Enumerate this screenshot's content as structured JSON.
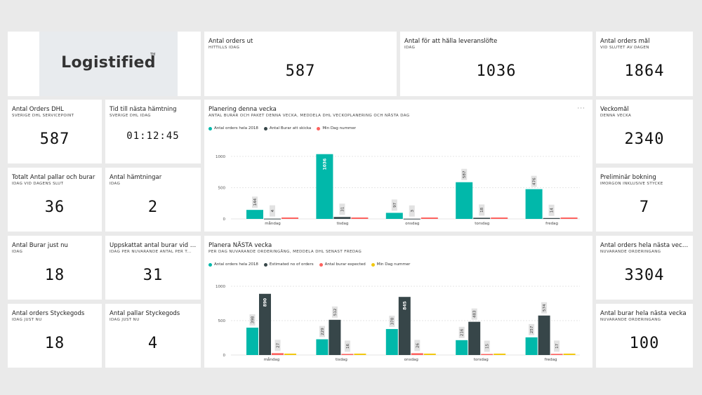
{
  "logo": {
    "text": "Logistified",
    "tm": "TM"
  },
  "kpis": {
    "orders_ut": {
      "title": "Antal orders ut",
      "sub": "HITTILLS IDAG",
      "value": "587"
    },
    "leveranslofte": {
      "title": "Antal för att hålla leveranslöfte",
      "sub": "IDAG",
      "value": "1036"
    },
    "orders_mal": {
      "title": "Antal orders mål",
      "sub": "VID SLUTET AV DAGEN",
      "value": "1864"
    },
    "orders_dhl": {
      "title": "Antal Orders DHL",
      "sub": "SVERIGE DHL SERVICEPOINT",
      "value": "587"
    },
    "tid_hamtning": {
      "title": "Tid till nästa hämtning",
      "sub": "SVERIGE DHL IDAG",
      "value": "01:12:45"
    },
    "veckomal": {
      "title": "Veckomål",
      "sub": "DENNA VECKA",
      "value": "2340"
    },
    "pallar_burar": {
      "title": "Totalt Antal pallar och burar",
      "sub": "IDAG VID DAGENS SLUT",
      "value": "36"
    },
    "hamtningar": {
      "title": "Antal hämtningar",
      "sub": "IDAG",
      "value": "2"
    },
    "prel_bokning": {
      "title": "Preliminär bokning",
      "sub": "IMORGON INKLUSIVE STYCKE",
      "value": "7"
    },
    "burar_nu": {
      "title": "Antal Burar just nu",
      "sub": "IDAG",
      "value": "18"
    },
    "uppskattat": {
      "title": "Uppskattat antal burar vid d...",
      "sub": "IDAG PER NUVARANDE ANTAL PER T...",
      "value": "31"
    },
    "orders_nasta": {
      "title": "Antal orders hela nästa vecka",
      "sub": "NUVARANDE ORDERINGÅNG",
      "value": "3304"
    },
    "styckegods": {
      "title": "Antal orders Styckegods",
      "sub": "IDAG JUST NU",
      "value": "18"
    },
    "pallar_stycke": {
      "title": "Antal pallar Styckegods",
      "sub": "IDAG JUST NU",
      "value": "4"
    },
    "burar_nasta": {
      "title": "Antal burar hela nästa vecka",
      "sub": "NUVARANDE ORDERINGÅNG",
      "value": "100"
    }
  },
  "chart1": {
    "title": "Planering denna vecka",
    "sub": "ANTAL BURAR OCH PAKET DENNA VECKA, MEDDELA DHL VECKOPLANERING OCH NÄSTA DAG",
    "more": "···",
    "legend": [
      "Antal orders hela 2018",
      "Antal Burar att skicka",
      "Min Dag nummer"
    ]
  },
  "chart2": {
    "title": "Planera NÄSTA vecka",
    "sub": "PER DAG NUVARANDE ORDERINGÅNG, MEDDELA DHL SENAST FREDAG",
    "legend": [
      "Antal orders hela 2018",
      "Estimated no of orders",
      "Antal burar expected",
      "Min Dag nummer"
    ]
  },
  "colors": {
    "teal": "#01b8aa",
    "dark": "#374649",
    "red": "#fd625e",
    "yellow": "#f2c80f"
  },
  "chart_data": [
    {
      "type": "bar",
      "categories": [
        "måndag",
        "tisdag",
        "onsdag",
        "torsdag",
        "fredag"
      ],
      "series": [
        {
          "name": "Antal orders hela 2018",
          "values": [
            144,
            1036,
            97,
            587,
            476
          ]
        },
        {
          "name": "Antal Burar att skicka",
          "values": [
            4,
            31,
            3,
            18,
            14
          ]
        },
        {
          "name": "Min Dag nummer",
          "values": [
            6,
            6,
            6,
            6,
            6
          ]
        }
      ],
      "yticks": [
        "0",
        "500",
        "1000"
      ],
      "ylim": [
        0,
        1100
      ]
    },
    {
      "type": "bar",
      "categories": [
        "måndag",
        "tisdag",
        "onsdag",
        "torsdag",
        "fredag"
      ],
      "series": [
        {
          "name": "Antal orders hela 2018",
          "values": [
            398,
            229,
            378,
            216,
            257
          ]
        },
        {
          "name": "Estimated no of orders",
          "values": [
            890,
            512,
            845,
            483,
            574
          ]
        },
        {
          "name": "Antal burar expected",
          "values": [
            27,
            16,
            26,
            15,
            17
          ]
        },
        {
          "name": "Min Dag nummer",
          "values": [
            6,
            6,
            6,
            6,
            6
          ]
        }
      ],
      "yticks": [
        "0",
        "500",
        "1000"
      ],
      "ylim": [
        0,
        1000
      ]
    }
  ]
}
